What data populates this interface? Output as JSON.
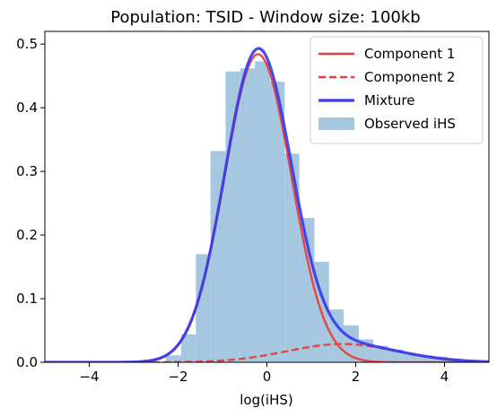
{
  "chart_data": {
    "type": "histogram-with-density-lines",
    "title": "Population: TSID - Window size: 100kb",
    "xlabel": "log(iHS)",
    "ylabel": "",
    "xlim": [
      -5,
      5
    ],
    "ylim": [
      0,
      0.52
    ],
    "xticks": [
      -4,
      -2,
      0,
      2,
      4
    ],
    "yticks": [
      0.0,
      0.1,
      0.2,
      0.3,
      0.4,
      0.5
    ],
    "grid": false,
    "legend_position": "top-right",
    "histogram": {
      "name": "Observed iHS",
      "color": "#a6c7e0",
      "bins": [
        {
          "x0": -2.27,
          "x1": -1.93,
          "value": 0.011
        },
        {
          "x0": -1.93,
          "x1": -1.6,
          "value": 0.044
        },
        {
          "x0": -1.6,
          "x1": -1.27,
          "value": 0.17
        },
        {
          "x0": -1.27,
          "x1": -0.93,
          "value": 0.332
        },
        {
          "x0": -0.93,
          "x1": -0.6,
          "value": 0.457
        },
        {
          "x0": -0.6,
          "x1": -0.27,
          "value": 0.462
        },
        {
          "x0": -0.27,
          "x1": 0.07,
          "value": 0.473
        },
        {
          "x0": 0.07,
          "x1": 0.4,
          "value": 0.441
        },
        {
          "x0": 0.4,
          "x1": 0.73,
          "value": 0.328
        },
        {
          "x0": 0.73,
          "x1": 1.07,
          "value": 0.227
        },
        {
          "x0": 1.07,
          "x1": 1.4,
          "value": 0.158
        },
        {
          "x0": 1.4,
          "x1": 1.73,
          "value": 0.083
        },
        {
          "x0": 1.73,
          "x1": 2.07,
          "value": 0.058
        },
        {
          "x0": 2.07,
          "x1": 2.4,
          "value": 0.036
        },
        {
          "x0": 2.4,
          "x1": 2.73,
          "value": 0.026
        },
        {
          "x0": 2.73,
          "x1": 3.07,
          "value": 0.02
        },
        {
          "x0": 3.07,
          "x1": 3.4,
          "value": 0.013
        },
        {
          "x0": 3.4,
          "x1": 3.73,
          "value": 0.011
        },
        {
          "x0": 3.73,
          "x1": 4.07,
          "value": 0.009
        },
        {
          "x0": 4.07,
          "x1": 4.4,
          "value": 0.006
        },
        {
          "x0": 4.4,
          "x1": 4.73,
          "value": 0.004
        }
      ]
    },
    "series": [
      {
        "name": "Component 1",
        "color": "#e8413d",
        "style": "solid",
        "distribution": "normal",
        "weight": 0.91,
        "mean": -0.2,
        "sd": 0.75
      },
      {
        "name": "Component 2",
        "color": "#e8413d",
        "style": "dashed",
        "distribution": "normal",
        "weight": 0.09,
        "mean": 1.7,
        "sd": 1.25
      },
      {
        "name": "Mixture",
        "color": "#3b3be6",
        "style": "solid",
        "distribution": "mixture",
        "of": [
          "Component 1",
          "Component 2"
        ]
      }
    ]
  }
}
